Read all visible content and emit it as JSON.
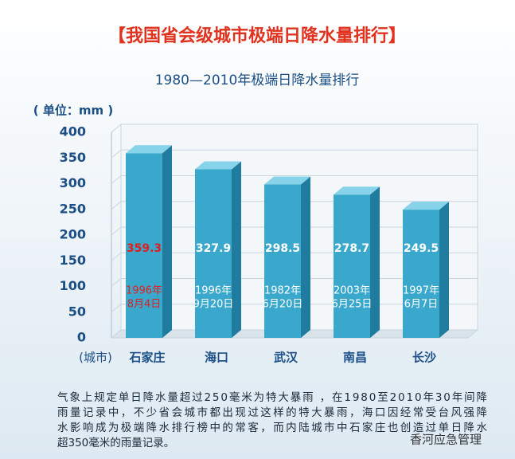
{
  "chart_data": {
    "type": "bar",
    "title": "【我国省会级城市极端日降水量排行】",
    "subtitle": "1980—2010年极端日降水量排行",
    "y_label": "( 单位：mm )",
    "x_label": "(城市)",
    "categories": [
      "石家庄",
      "海口",
      "武汉",
      "南昌",
      "长沙"
    ],
    "values": [
      359.3,
      327.9,
      298.5,
      278.7,
      249.5
    ],
    "dates": [
      [
        "1996年",
        "8月4日"
      ],
      [
        "1996年",
        "9月20日"
      ],
      [
        "1982年",
        "6月20日"
      ],
      [
        "2003年",
        "6月25日"
      ],
      [
        "1997年",
        "6月7日"
      ]
    ],
    "label_colors": [
      "#e0201e",
      "#ffffff",
      "#ffffff",
      "#ffffff",
      "#ffffff"
    ],
    "color": "#3aa8cc",
    "ylim": [
      0,
      400
    ],
    "yticks": [
      0,
      50,
      100,
      150,
      200,
      250,
      300,
      350,
      400
    ],
    "grid": true,
    "note": [
      "气象上规定单日降水量超过250毫米为特大暴雨 ，在1980至2010年30年间降",
      "雨量记录中，不少省会城市都出现过这样的特大暴雨，海口因经常受台风强降",
      "水影响成为极端降水排行榜中的常客，而内陆城市中石家庄也创造过单日降水",
      "超350毫米的雨量记录。"
    ],
    "watermark": "香河应急管理"
  }
}
